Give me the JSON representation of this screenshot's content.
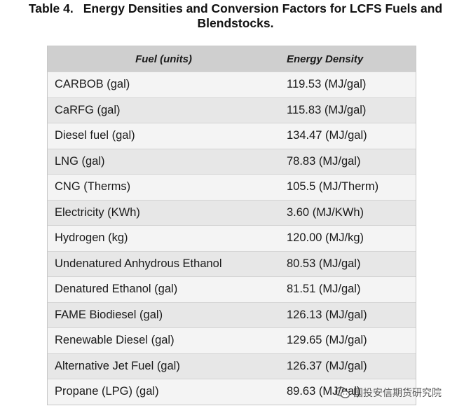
{
  "caption": {
    "number": "Table 4.",
    "title_line1": "Energy Densities and Conversion Factors for LCFS Fuels and",
    "title_line2": "Blendstocks."
  },
  "table": {
    "headers": [
      "Fuel (units)",
      "Energy Density"
    ],
    "rows": [
      [
        "CARBOB (gal)",
        "119.53 (MJ/gal)"
      ],
      [
        "CaRFG (gal)",
        "115.83 (MJ/gal)"
      ],
      [
        "Diesel fuel (gal)",
        "134.47 (MJ/gal)"
      ],
      [
        "LNG (gal)",
        "78.83 (MJ/gal)"
      ],
      [
        "CNG (Therms)",
        "105.5 (MJ/Therm)"
      ],
      [
        "Electricity (KWh)",
        "3.60 (MJ/KWh)"
      ],
      [
        "Hydrogen (kg)",
        "120.00 (MJ/kg)"
      ],
      [
        "Undenatured Anhydrous Ethanol",
        "80.53 (MJ/gal)"
      ],
      [
        "Denatured Ethanol (gal)",
        "81.51 (MJ/gal)"
      ],
      [
        "FAME Biodiesel (gal)",
        "126.13 (MJ/gal)"
      ],
      [
        "Renewable Diesel (gal)",
        "129.65 (MJ/gal)"
      ],
      [
        "Alternative Jet Fuel (gal)",
        "126.37 (MJ/gal)"
      ],
      [
        "Propane (LPG) (gal)",
        "89.63 (MJ/gal)"
      ]
    ]
  },
  "watermark": {
    "text": "国投安信期货研究院",
    "icon": "wechat-icon"
  }
}
